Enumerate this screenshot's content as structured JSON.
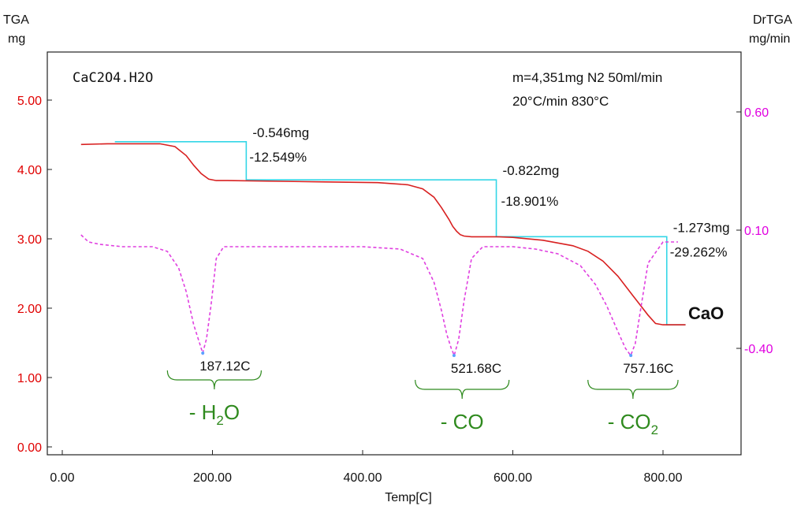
{
  "chart_data": {
    "type": "line",
    "left_axis": {
      "title": "TGA",
      "unit": "mg",
      "ticks": [
        "5.00",
        "4.00",
        "3.00",
        "2.00",
        "1.00",
        "0.00"
      ],
      "ylim": [
        0,
        5.7
      ],
      "color": "#e00000"
    },
    "right_axis": {
      "title": "DrTGA",
      "unit": "mg/min",
      "ticks": [
        "0.60",
        "0.10",
        "-0.40"
      ],
      "color": "#e000e0"
    },
    "x_axis": {
      "title": "Temp[C]",
      "ticks": [
        "0.00",
        "200.00",
        "400.00",
        "600.00",
        "800.00"
      ],
      "xlim": [
        -30,
        930
      ]
    },
    "sample_label": "CaC2O4.H2O",
    "conditions": [
      "m=4,351mg  N2  50ml/min",
      "20°C/min  830°C"
    ],
    "series": [
      {
        "name": "TGA",
        "axis": "left",
        "color": "#d82020",
        "style": "solid",
        "x": [
          25,
          60,
          100,
          130,
          150,
          165,
          175,
          185,
          195,
          205,
          220,
          350,
          420,
          460,
          480,
          495,
          505,
          515,
          520,
          525,
          530,
          535,
          545,
          560,
          580,
          600,
          640,
          680,
          700,
          720,
          740,
          760,
          780,
          790,
          800,
          820,
          830
        ],
        "y": [
          4.36,
          4.37,
          4.37,
          4.37,
          4.33,
          4.2,
          4.06,
          3.94,
          3.86,
          3.84,
          3.84,
          3.82,
          3.81,
          3.78,
          3.72,
          3.6,
          3.45,
          3.28,
          3.18,
          3.11,
          3.06,
          3.04,
          3.03,
          3.03,
          3.03,
          3.02,
          2.98,
          2.9,
          2.82,
          2.68,
          2.46,
          2.18,
          1.9,
          1.78,
          1.76,
          1.76,
          1.76
        ]
      },
      {
        "name": "DrTGA",
        "axis": "right",
        "color": "#e040e0",
        "style": "dashed",
        "x": [
          25,
          35,
          50,
          80,
          120,
          140,
          155,
          165,
          175,
          182,
          187,
          192,
          198,
          205,
          215,
          300,
          400,
          450,
          480,
          495,
          505,
          512,
          518,
          522,
          528,
          535,
          545,
          560,
          600,
          630,
          660,
          690,
          710,
          725,
          740,
          750,
          757,
          763,
          770,
          780,
          800,
          820
        ],
        "y": [
          0.08,
          0.05,
          0.04,
          0.03,
          0.03,
          0.01,
          -0.06,
          -0.16,
          -0.3,
          -0.37,
          -0.42,
          -0.36,
          -0.22,
          -0.02,
          0.03,
          0.03,
          0.03,
          0.02,
          -0.02,
          -0.12,
          -0.24,
          -0.34,
          -0.4,
          -0.43,
          -0.36,
          -0.2,
          -0.02,
          0.03,
          0.03,
          0.02,
          0.0,
          -0.05,
          -0.13,
          -0.22,
          -0.33,
          -0.4,
          -0.43,
          -0.38,
          -0.24,
          -0.04,
          0.05,
          0.05
        ]
      }
    ],
    "steps": [
      {
        "mass_loss": "-0.546mg",
        "percent": "-12.549%",
        "x_start": 70,
        "x_drop": 245,
        "y_top": 4.4,
        "y_bottom": 3.85
      },
      {
        "mass_loss": "-0.822mg",
        "percent": "-18.901%",
        "x_start": 345,
        "x_drop": 578,
        "y_top": 3.85,
        "y_bottom": 3.03
      },
      {
        "mass_loss": "-1.273mg",
        "percent": "-29.262%",
        "x_start": 578,
        "x_drop": 805,
        "y_top": 3.03,
        "y_bottom": 1.76
      }
    ],
    "peaks": [
      {
        "temp": 187.12,
        "label": "187.12C",
        "dr": -0.42
      },
      {
        "temp": 521.68,
        "label": "521.68C",
        "dr": -0.43
      },
      {
        "temp": 757.16,
        "label": "757.16C",
        "dr": -0.43
      }
    ],
    "product_label": "CaO",
    "losses": [
      {
        "label": "- H",
        "sub": "2",
        "tail": "O",
        "x_from": 140,
        "x_to": 265
      },
      {
        "label": "- CO",
        "sub": "",
        "tail": "",
        "x_from": 470,
        "x_to": 595
      },
      {
        "label": "- CO",
        "sub": "2",
        "tail": "",
        "x_from": 700,
        "x_to": 820
      }
    ],
    "grid": false
  },
  "colors": {
    "tga": "#d82020",
    "drtga": "#e040e0",
    "steps": "#33d6e6",
    "losses": "#2f8a1e",
    "left_axis": "#e00000",
    "right_axis": "#e000e0"
  }
}
